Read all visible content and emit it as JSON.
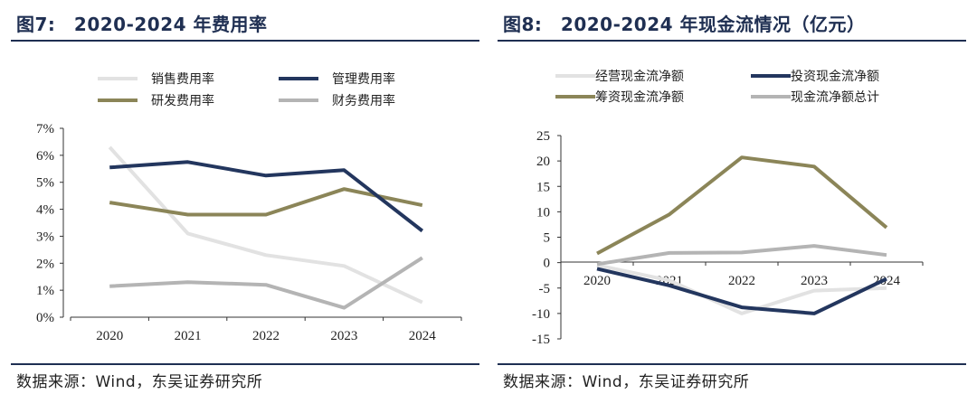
{
  "footer_source": "数据来源：Wind，东吴证券研究所",
  "chart_data": [
    {
      "type": "line",
      "title": "图7:　2020-2024 年费用率",
      "x": [
        "2020",
        "2021",
        "2022",
        "2023",
        "2024"
      ],
      "ylim": [
        0,
        7
      ],
      "yticks": [
        "0%",
        "1%",
        "2%",
        "3%",
        "4%",
        "5%",
        "6%",
        "7%"
      ],
      "grid": false,
      "legend": "top",
      "series": [
        {
          "name": "销售费用率",
          "color": "#e2e2e2",
          "values": [
            6.3,
            3.1,
            2.3,
            1.9,
            0.55
          ]
        },
        {
          "name": "管理费用率",
          "color": "#23365e",
          "values": [
            5.55,
            5.75,
            5.25,
            5.45,
            3.2
          ]
        },
        {
          "name": "研发费用率",
          "color": "#8b8558",
          "values": [
            4.25,
            3.8,
            3.8,
            4.75,
            4.15
          ]
        },
        {
          "name": "财务费用率",
          "color": "#b4b4b4",
          "values": [
            1.15,
            1.3,
            1.2,
            0.35,
            2.2
          ]
        }
      ]
    },
    {
      "type": "line",
      "title": "图8:　2020-2024 年现金流情况（亿元）",
      "x": [
        "2020",
        "2021",
        "2022",
        "2023",
        "2024"
      ],
      "ylim": [
        -15,
        25
      ],
      "yticks": [
        "-15",
        "-10",
        "-5",
        "0",
        "5",
        "10",
        "15",
        "20",
        "25"
      ],
      "grid": false,
      "legend": "top",
      "series": [
        {
          "name": "经营现金流净额",
          "color": "#e2e2e2",
          "values": [
            -0.5,
            -3.5,
            -10,
            -5.5,
            -5
          ]
        },
        {
          "name": "投资现金流净额",
          "color": "#23365e",
          "values": [
            -1.2,
            -4.5,
            -8.8,
            -10,
            -3.2
          ]
        },
        {
          "name": "筹资现金流净额",
          "color": "#8b8558",
          "values": [
            1.8,
            9.5,
            20.7,
            18.9,
            6.9
          ]
        },
        {
          "name": "现金流净额总计",
          "color": "#b4b4b4",
          "values": [
            -0.3,
            1.9,
            2.0,
            3.3,
            1.5
          ]
        }
      ]
    }
  ]
}
